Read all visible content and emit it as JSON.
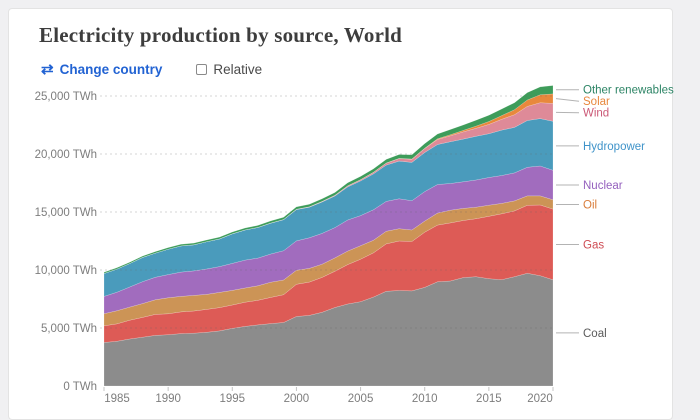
{
  "header": {
    "title": "Electricity production by source, World"
  },
  "controls": {
    "change_country_label": "Change country",
    "swap_icon_glyph": "⇄",
    "relative_label": "Relative",
    "link_color": "#2263d3"
  },
  "chart_data": {
    "type": "area",
    "stacked": true,
    "title": "Electricity production by source, World",
    "unit": "TWh",
    "xlabel": "",
    "ylabel": "TWh",
    "ylim": [
      0,
      26000
    ],
    "grid": "dashed-horizontal",
    "legend_position": "right-of-plot",
    "x": [
      1985,
      1986,
      1987,
      1988,
      1989,
      1990,
      1991,
      1992,
      1993,
      1994,
      1995,
      1996,
      1997,
      1998,
      1999,
      2000,
      2001,
      2002,
      2003,
      2004,
      2005,
      2006,
      2007,
      2008,
      2009,
      2010,
      2011,
      2012,
      2013,
      2014,
      2015,
      2016,
      2017,
      2018,
      2019,
      2020
    ],
    "series": [
      {
        "name": "Coal",
        "color": "#8c8c8c",
        "label_color": "#5b5b5b",
        "values": [
          3748,
          3852,
          4056,
          4206,
          4358,
          4426,
          4519,
          4553,
          4631,
          4752,
          4962,
          5135,
          5264,
          5382,
          5472,
          5994,
          6086,
          6351,
          6768,
          7066,
          7268,
          7664,
          8167,
          8236,
          8199,
          8502,
          8985,
          9054,
          9341,
          9425,
          9252,
          9167,
          9421,
          9716,
          9510,
          9157
        ]
      },
      {
        "name": "Gas",
        "color": "#dd5b56",
        "label_color": "#ce4b53",
        "values": [
          1441,
          1504,
          1614,
          1704,
          1815,
          1795,
          1867,
          1912,
          1972,
          2010,
          2022,
          2088,
          2122,
          2258,
          2400,
          2771,
          2873,
          3008,
          3120,
          3399,
          3660,
          3807,
          4085,
          4261,
          4259,
          4758,
          4886,
          5009,
          4930,
          5000,
          5377,
          5675,
          5676,
          5860,
          6095,
          6092
        ]
      },
      {
        "name": "Oil",
        "color": "#cc9456",
        "label_color": "#d97d3b",
        "values": [
          1044,
          1124,
          1130,
          1190,
          1254,
          1380,
          1337,
          1348,
          1297,
          1310,
          1259,
          1224,
          1249,
          1312,
          1269,
          1207,
          1181,
          1140,
          1152,
          1161,
          1165,
          1092,
          1081,
          1067,
          988,
          958,
          1033,
          1096,
          1043,
          992,
          960,
          903,
          857,
          810,
          785,
          802
        ]
      },
      {
        "name": "Nuclear",
        "color": "#a16cbe",
        "label_color": "#9561be",
        "values": [
          1489,
          1594,
          1734,
          1891,
          1945,
          2000,
          2096,
          2111,
          2185,
          2225,
          2322,
          2406,
          2390,
          2431,
          2520,
          2540,
          2637,
          2654,
          2615,
          2684,
          2600,
          2628,
          2582,
          2571,
          2532,
          2539,
          2468,
          2299,
          2288,
          2338,
          2383,
          2403,
          2415,
          2466,
          2572,
          2543
        ]
      },
      {
        "name": "Hydropower",
        "color": "#4a9bbc",
        "label_color": "#3f93c9",
        "values": [
          1979,
          2006,
          2028,
          2090,
          2087,
          2191,
          2257,
          2245,
          2352,
          2378,
          2545,
          2596,
          2638,
          2651,
          2675,
          2697,
          2635,
          2705,
          2723,
          2858,
          2989,
          3091,
          3130,
          3255,
          3296,
          3375,
          3446,
          3599,
          3680,
          3769,
          3775,
          3915,
          3923,
          4034,
          4087,
          4223
        ]
      },
      {
        "name": "Wind",
        "color": "#de8a98",
        "label_color": "#cb5a77",
        "values": [
          0,
          0,
          0,
          1,
          2,
          4,
          4,
          5,
          6,
          7,
          8,
          9,
          12,
          16,
          21,
          31,
          38,
          52,
          63,
          85,
          103,
          132,
          169,
          219,
          273,
          339,
          428,
          515,
          627,
          691,
          806,
          928,
          1096,
          1221,
          1375,
          1546
        ]
      },
      {
        "name": "Solar",
        "color": "#e8883c",
        "label_color": "#e8873d",
        "values": [
          0,
          0,
          0,
          0,
          0,
          0,
          0,
          0,
          0,
          0,
          0,
          0,
          0,
          0,
          0,
          1,
          1,
          2,
          2,
          3,
          4,
          5,
          7,
          12,
          20,
          31,
          62,
          95,
          128,
          191,
          248,
          318,
          428,
          552,
          681,
          820
        ]
      },
      {
        "name": "Other renewables",
        "color": "#3e9c5a",
        "label_color": "#2c8465",
        "values": [
          104,
          108,
          112,
          116,
          122,
          131,
          136,
          141,
          147,
          153,
          160,
          166,
          172,
          180,
          190,
          200,
          211,
          224,
          237,
          258,
          277,
          297,
          315,
          337,
          361,
          392,
          417,
          446,
          466,
          504,
          543,
          572,
          603,
          635,
          678,
          719
        ]
      }
    ],
    "y_ticks": [
      {
        "value": 0,
        "label": "0 TWh"
      },
      {
        "value": 5000,
        "label": "5,000 TWh"
      },
      {
        "value": 10000,
        "label": "10,000 TWh"
      },
      {
        "value": 15000,
        "label": "15,000 TWh"
      },
      {
        "value": 20000,
        "label": "20,000 TWh"
      },
      {
        "value": 25000,
        "label": "25,000 TWh"
      }
    ],
    "x_ticks": [
      {
        "value": 1985,
        "label": "1985"
      },
      {
        "value": 1990,
        "label": "1990"
      },
      {
        "value": 1995,
        "label": "1995"
      },
      {
        "value": 2000,
        "label": "2000"
      },
      {
        "value": 2005,
        "label": "2005"
      },
      {
        "value": 2010,
        "label": "2010"
      },
      {
        "value": 2015,
        "label": "2015"
      },
      {
        "value": 2020,
        "label": "2020"
      }
    ]
  }
}
